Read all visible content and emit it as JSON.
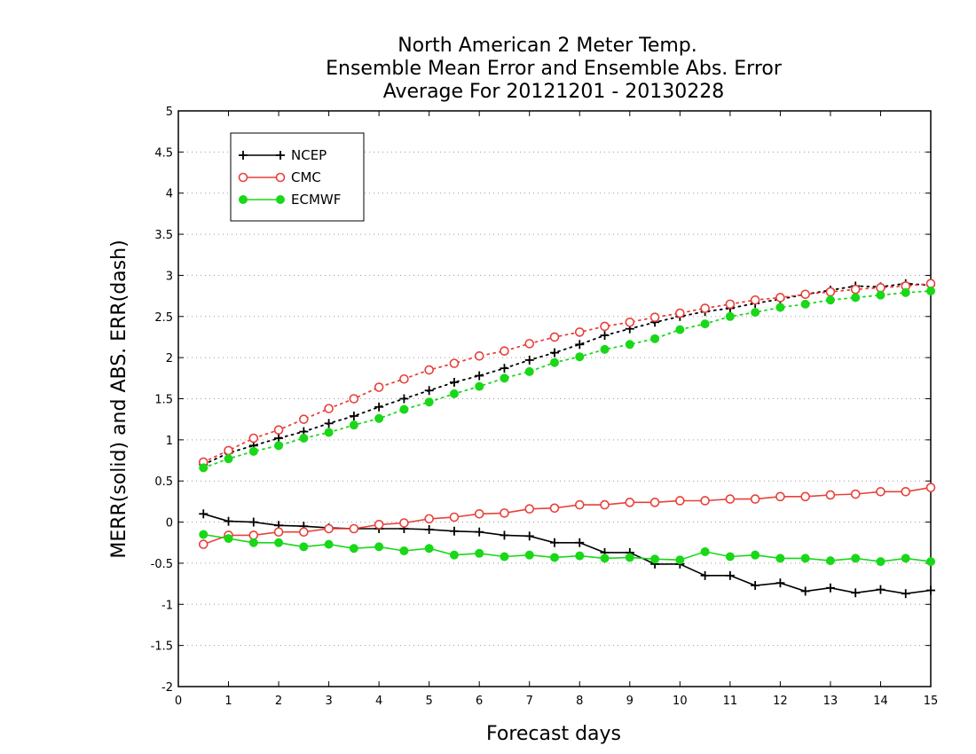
{
  "chart_data": {
    "type": "line",
    "title_lines": [
      "North American 2 Meter Temp.",
      "Ensemble Mean Error and Ensemble Abs. Error",
      "Average For 20121201 - 20130228"
    ],
    "xlabel": "Forecast days",
    "ylabel": "MERR(solid) and ABS. ERR(dash)",
    "xlim": [
      0,
      15
    ],
    "ylim": [
      -2,
      5
    ],
    "xticks": [
      0,
      1,
      2,
      3,
      4,
      5,
      6,
      7,
      8,
      9,
      10,
      11,
      12,
      13,
      14,
      15
    ],
    "xtick_labels": [
      "0",
      "1",
      "2",
      "3",
      "4",
      "5",
      "6",
      "7",
      "8",
      "9",
      "10",
      "11",
      "12",
      "13",
      "14",
      "15"
    ],
    "yticks": [
      -2,
      -1.5,
      -1,
      -0.5,
      0,
      0.5,
      1,
      1.5,
      2,
      2.5,
      3,
      3.5,
      4,
      4.5,
      5
    ],
    "ytick_labels": [
      "-2",
      "-1.5",
      "-1",
      "-0.5",
      "0",
      "0.5",
      "1",
      "1.5",
      "2",
      "2.5",
      "3",
      "3.5",
      "4",
      "4.5",
      "5"
    ],
    "grid": "horizontal dotted",
    "legend_position": "top-left",
    "x": [
      0.5,
      1,
      1.5,
      2,
      2.5,
      3,
      3.5,
      4,
      4.5,
      5,
      5.5,
      6,
      6.5,
      7,
      7.5,
      8,
      8.5,
      9,
      9.5,
      10,
      10.5,
      11,
      11.5,
      12,
      12.5,
      13,
      13.5,
      14,
      14.5,
      15
    ],
    "series": [
      {
        "name": "NCEP",
        "color": "#000000",
        "marker": "plus",
        "merr": [
          0.1,
          0.01,
          0.0,
          -0.04,
          -0.05,
          -0.07,
          -0.08,
          -0.08,
          -0.08,
          -0.09,
          -0.11,
          -0.12,
          -0.16,
          -0.17,
          -0.25,
          -0.25,
          -0.37,
          -0.37,
          -0.51,
          -0.51,
          -0.65,
          -0.65,
          -0.77,
          -0.74,
          -0.84,
          -0.8,
          -0.86,
          -0.82,
          -0.87,
          -0.83
        ],
        "abs_err": [
          0.7,
          0.84,
          0.93,
          1.02,
          1.1,
          1.2,
          1.29,
          1.4,
          1.5,
          1.6,
          1.7,
          1.78,
          1.87,
          1.97,
          2.06,
          2.16,
          2.27,
          2.35,
          2.43,
          2.5,
          2.56,
          2.6,
          2.66,
          2.71,
          2.77,
          2.82,
          2.87,
          2.86,
          2.9,
          2.88
        ]
      },
      {
        "name": "CMC",
        "color": "#e8413a",
        "marker": "open-circle",
        "merr": [
          -0.27,
          -0.16,
          -0.16,
          -0.12,
          -0.12,
          -0.08,
          -0.08,
          -0.03,
          -0.01,
          0.04,
          0.06,
          0.1,
          0.11,
          0.16,
          0.17,
          0.21,
          0.21,
          0.24,
          0.24,
          0.26,
          0.26,
          0.28,
          0.28,
          0.31,
          0.31,
          0.33,
          0.34,
          0.37,
          0.37,
          0.42
        ],
        "abs_err": [
          0.73,
          0.87,
          1.02,
          1.12,
          1.25,
          1.38,
          1.5,
          1.64,
          1.74,
          1.85,
          1.93,
          2.02,
          2.08,
          2.17,
          2.25,
          2.31,
          2.38,
          2.43,
          2.49,
          2.54,
          2.6,
          2.65,
          2.7,
          2.73,
          2.77,
          2.8,
          2.83,
          2.85,
          2.87,
          2.9
        ]
      },
      {
        "name": "ECMWF",
        "color": "#18d818",
        "marker": "filled-circle",
        "merr": [
          -0.15,
          -0.2,
          -0.25,
          -0.25,
          -0.3,
          -0.27,
          -0.32,
          -0.3,
          -0.35,
          -0.32,
          -0.4,
          -0.38,
          -0.42,
          -0.4,
          -0.43,
          -0.41,
          -0.44,
          -0.43,
          -0.45,
          -0.46,
          -0.36,
          -0.42,
          -0.4,
          -0.44,
          -0.44,
          -0.47,
          -0.44,
          -0.48,
          -0.44,
          -0.48
        ],
        "abs_err": [
          0.66,
          0.77,
          0.86,
          0.93,
          1.02,
          1.09,
          1.18,
          1.26,
          1.37,
          1.46,
          1.56,
          1.65,
          1.75,
          1.83,
          1.94,
          2.01,
          2.1,
          2.16,
          2.23,
          2.34,
          2.41,
          2.5,
          2.55,
          2.61,
          2.65,
          2.7,
          2.73,
          2.76,
          2.79,
          2.81
        ]
      }
    ]
  }
}
